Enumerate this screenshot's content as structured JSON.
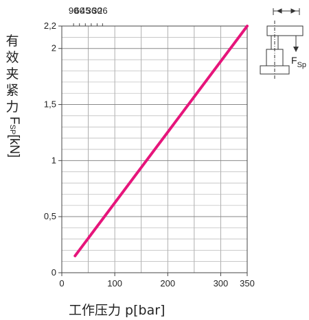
{
  "chart_data": {
    "type": "line",
    "xlabel": "工作压力 p[bar]",
    "ylabel_chars": [
      "有",
      "效",
      "夹",
      "紧",
      "力"
    ],
    "ylabel_symbol": "F",
    "ylabel_subscript": "SP",
    "ylabel_unit": "[kN]",
    "xlim": [
      0,
      350
    ],
    "ylim": [
      0,
      2.2
    ],
    "x_ticks": [
      {
        "value": 0,
        "label": "0"
      },
      {
        "value": 100,
        "label": "100"
      },
      {
        "value": 200,
        "label": "200"
      },
      {
        "value": 300,
        "label": "300"
      },
      {
        "value": 350,
        "label": "350"
      }
    ],
    "y_ticks": [
      {
        "value": 0,
        "label": "0"
      },
      {
        "value": 0.5,
        "label": "0,5"
      },
      {
        "value": 1,
        "label": "1"
      },
      {
        "value": 1.5,
        "label": "1,5"
      },
      {
        "value": 2,
        "label": "2"
      },
      {
        "value": 2.2,
        "label": "2,2"
      }
    ],
    "top_axis_ticks": [
      {
        "value": 90,
        "label": "90"
      },
      {
        "value": 60,
        "label": "60"
      },
      {
        "value": 45,
        "label": "45"
      },
      {
        "value": 36,
        "label": "36"
      },
      {
        "value": 30,
        "label": "30"
      },
      {
        "value": 26,
        "label": "26"
      }
    ],
    "grid": true,
    "series": [
      {
        "color": "#e6157b",
        "points": [
          {
            "x": 25,
            "y": 0.15
          },
          {
            "x": 350,
            "y": 2.2
          }
        ]
      }
    ],
    "diagram_label": "F",
    "diagram_label_subscript": "Sp"
  }
}
